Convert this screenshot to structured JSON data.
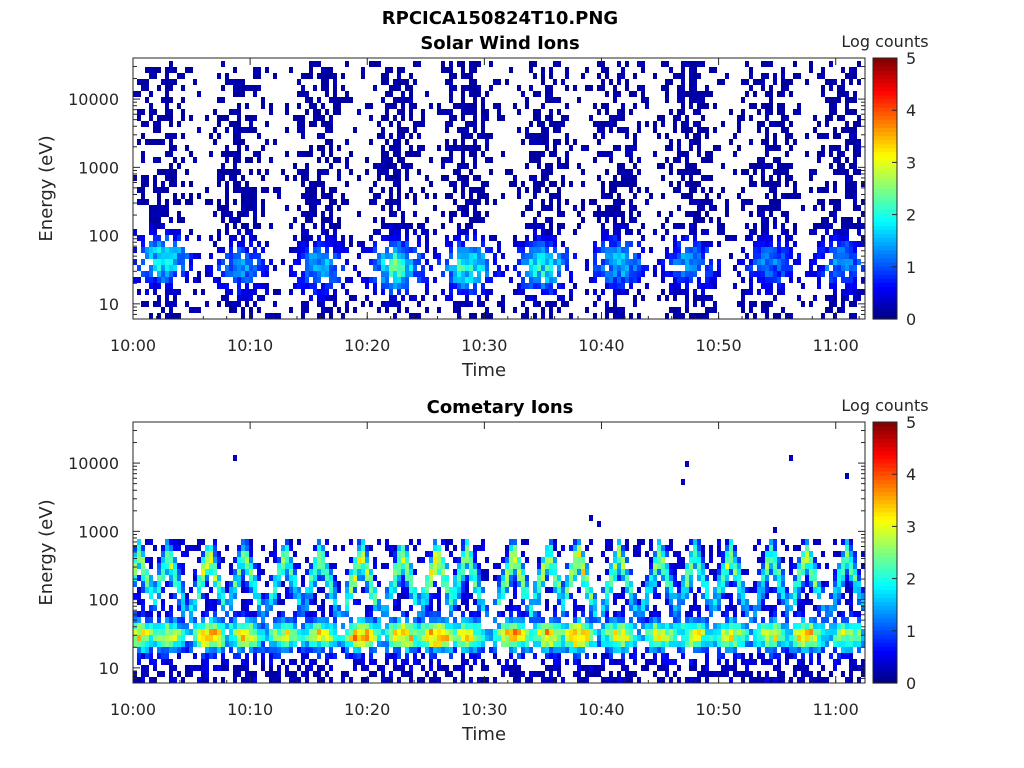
{
  "figure": {
    "title": "RPCICA150824T10.PNG"
  },
  "colormap": "jet",
  "chart_data": [
    {
      "type": "heatmap",
      "title": "Solar Wind Ions",
      "xlabel": "Time",
      "ylabel": "Energy (eV)",
      "y_scale": "log",
      "ylim": [
        6,
        40000
      ],
      "xlim_minutes_after_10": [
        0,
        62.5
      ],
      "x_ticks": [
        {
          "minutes_after_10": 0,
          "label": "10:00"
        },
        {
          "minutes_after_10": 10,
          "label": "10:10"
        },
        {
          "minutes_after_10": 20,
          "label": "10:20"
        },
        {
          "minutes_after_10": 30,
          "label": "10:30"
        },
        {
          "minutes_after_10": 40,
          "label": "10:40"
        },
        {
          "minutes_after_10": 50,
          "label": "10:50"
        },
        {
          "minutes_after_10": 60,
          "label": "11:00"
        }
      ],
      "y_ticks": [
        {
          "value": 10,
          "label": "10"
        },
        {
          "value": 100,
          "label": "100"
        },
        {
          "value": 1000,
          "label": "1000"
        },
        {
          "value": 10000,
          "label": "10000"
        }
      ],
      "colorbar": {
        "label": "Log counts",
        "range": [
          0,
          5
        ],
        "ticks": [
          {
            "value": 0,
            "label": "0"
          },
          {
            "value": 1,
            "label": "1"
          },
          {
            "value": 2,
            "label": "2"
          },
          {
            "value": 3,
            "label": "3"
          },
          {
            "value": 4,
            "label": "4"
          },
          {
            "value": 5,
            "label": "5"
          }
        ]
      },
      "bursts": [
        {
          "t": 2.5,
          "peak_energy": 45,
          "peak_log_counts": 2.0
        },
        {
          "t": 9.2,
          "peak_energy": 35,
          "peak_log_counts": 1.4
        },
        {
          "t": 16.0,
          "peak_energy": 35,
          "peak_log_counts": 1.6
        },
        {
          "t": 22.5,
          "peak_energy": 35,
          "peak_log_counts": 2.3
        },
        {
          "t": 28.5,
          "peak_energy": 35,
          "peak_log_counts": 2.3
        },
        {
          "t": 35.0,
          "peak_energy": 35,
          "peak_log_counts": 2.0
        },
        {
          "t": 41.5,
          "peak_energy": 40,
          "peak_log_counts": 1.7
        },
        {
          "t": 47.5,
          "peak_energy": 40,
          "peak_log_counts": 1.4
        },
        {
          "t": 54.5,
          "peak_energy": 40,
          "peak_log_counts": 1.3
        },
        {
          "t": 60.5,
          "peak_energy": 40,
          "peak_log_counts": 1.4
        }
      ]
    },
    {
      "type": "heatmap",
      "title": "Cometary Ions",
      "xlabel": "Time",
      "ylabel": "Energy (eV)",
      "y_scale": "log",
      "ylim": [
        6,
        40000
      ],
      "xlim_minutes_after_10": [
        0,
        62.5
      ],
      "x_ticks": [
        {
          "minutes_after_10": 0,
          "label": "10:00"
        },
        {
          "minutes_after_10": 10,
          "label": "10:10"
        },
        {
          "minutes_after_10": 20,
          "label": "10:20"
        },
        {
          "minutes_after_10": 30,
          "label": "10:30"
        },
        {
          "minutes_after_10": 40,
          "label": "10:40"
        },
        {
          "minutes_after_10": 50,
          "label": "10:50"
        },
        {
          "minutes_after_10": 60,
          "label": "11:00"
        }
      ],
      "y_ticks": [
        {
          "value": 10,
          "label": "10"
        },
        {
          "value": 100,
          "label": "100"
        },
        {
          "value": 1000,
          "label": "1000"
        },
        {
          "value": 10000,
          "label": "10000"
        }
      ],
      "colorbar": {
        "label": "Log counts",
        "range": [
          0,
          5
        ],
        "ticks": [
          {
            "value": 0,
            "label": "0"
          },
          {
            "value": 1,
            "label": "1"
          },
          {
            "value": 2,
            "label": "2"
          },
          {
            "value": 3,
            "label": "3"
          },
          {
            "value": 4,
            "label": "4"
          },
          {
            "value": 5,
            "label": "5"
          }
        ]
      },
      "bursts": [
        {
          "t": 0.5,
          "peak_energy": 30,
          "peak_log_counts": 3.2
        },
        {
          "t": 3.0,
          "peak_energy": 30,
          "peak_log_counts": 2.9
        },
        {
          "t": 6.5,
          "peak_energy": 30,
          "peak_log_counts": 3.6
        },
        {
          "t": 9.5,
          "peak_energy": 30,
          "peak_log_counts": 3.0
        },
        {
          "t": 13.0,
          "peak_energy": 30,
          "peak_log_counts": 2.8
        },
        {
          "t": 16.0,
          "peak_energy": 30,
          "peak_log_counts": 2.9
        },
        {
          "t": 19.5,
          "peak_energy": 30,
          "peak_log_counts": 3.6
        },
        {
          "t": 23.0,
          "peak_energy": 30,
          "peak_log_counts": 3.4
        },
        {
          "t": 26.0,
          "peak_energy": 30,
          "peak_log_counts": 3.8
        },
        {
          "t": 28.5,
          "peak_energy": 30,
          "peak_log_counts": 3.1
        },
        {
          "t": 32.5,
          "peak_energy": 30,
          "peak_log_counts": 3.5
        },
        {
          "t": 35.5,
          "peak_energy": 30,
          "peak_log_counts": 3.3
        },
        {
          "t": 38.0,
          "peak_energy": 30,
          "peak_log_counts": 3.7
        },
        {
          "t": 41.5,
          "peak_energy": 30,
          "peak_log_counts": 3.0
        },
        {
          "t": 45.0,
          "peak_energy": 30,
          "peak_log_counts": 2.9
        },
        {
          "t": 48.0,
          "peak_energy": 30,
          "peak_log_counts": 2.9
        },
        {
          "t": 51.0,
          "peak_energy": 30,
          "peak_log_counts": 3.0
        },
        {
          "t": 54.5,
          "peak_energy": 30,
          "peak_log_counts": 2.8
        },
        {
          "t": 57.5,
          "peak_energy": 30,
          "peak_log_counts": 3.2
        },
        {
          "t": 61.0,
          "peak_energy": 30,
          "peak_log_counts": 2.8
        }
      ]
    }
  ]
}
